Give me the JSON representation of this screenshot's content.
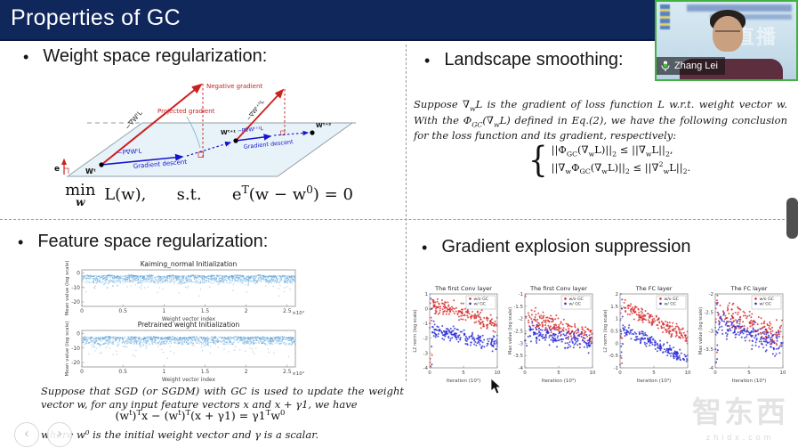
{
  "header": {
    "title": "Properties of GC"
  },
  "ui": {
    "bullet": "•",
    "prev": "‹",
    "next": "›",
    "brace": "{"
  },
  "video": {
    "participant": "Zhang Lei",
    "watermark": "直播"
  },
  "branding": {
    "cn": "智东西",
    "site": "zhidx.com"
  },
  "sections": {
    "weight": {
      "heading": "Weight space regularization:",
      "eq_min": "min",
      "eq_min_sub": "w",
      "eq_rest": [
        {
          "t": " L(w),"
        },
        {
          "t": "      s.t.      "
        },
        {
          "t": "e"
        },
        {
          "t": "T",
          "p": 1
        },
        {
          "t": "(w − w"
        },
        {
          "t": "0",
          "p": 1
        },
        {
          "t": ") = 0"
        }
      ],
      "diagram": {
        "e": "e",
        "wt": "Wᵗ",
        "wt1": "Wᵗ⁺¹",
        "wt2": "Wᵗ⁺²",
        "neg_arrow1": "−∇WᵗL",
        "neg_arrow2": "−∇Wᵗ⁺¹L",
        "proj_arrow1": "−P∇WᵗL",
        "proj_arrow2": "−P∇Wᵗ⁺¹L",
        "negative_gradient": "Negative gradient",
        "projected_gradient": "Projected gradient",
        "gradient_descent": "Gradient descent"
      }
    },
    "landscape": {
      "heading": "Landscape smoothing:",
      "paragraph": [
        {
          "t": "Suppose ∇"
        },
        {
          "t": "w",
          "s": 1
        },
        {
          "t": "L is the gradient of loss function L w.r.t. weight vector w. With the Φ"
        },
        {
          "t": "GC",
          "s": 1
        },
        {
          "t": "(∇"
        },
        {
          "t": "w",
          "s": 1
        },
        {
          "t": "L) defined in Eq.(2), we have the following conclusion for the loss function and its gradient, respectively:"
        }
      ],
      "eq1": [
        {
          "t": "||Φ"
        },
        {
          "t": "GC",
          "s": 1
        },
        {
          "t": "(∇"
        },
        {
          "t": "w",
          "s": 1
        },
        {
          "t": "L)||"
        },
        {
          "t": "2",
          "s": 1
        },
        {
          "t": " ≤ ||∇"
        },
        {
          "t": "w",
          "s": 1
        },
        {
          "t": "L||"
        },
        {
          "t": "2",
          "s": 1
        },
        {
          "t": ","
        }
      ],
      "eq2": [
        {
          "t": "||∇"
        },
        {
          "t": "w",
          "s": 1
        },
        {
          "t": "Φ"
        },
        {
          "t": "GC",
          "s": 1
        },
        {
          "t": "(∇"
        },
        {
          "t": "w",
          "s": 1
        },
        {
          "t": "L)||"
        },
        {
          "t": "2",
          "s": 1
        },
        {
          "t": " ≤ ||∇"
        },
        {
          "t": "2",
          "p": 1
        },
        {
          "t": "w",
          "s": 1
        },
        {
          "t": "L||"
        },
        {
          "t": "2",
          "s": 1
        },
        {
          "t": "."
        }
      ]
    },
    "feature": {
      "heading": "Feature space regularization:",
      "p1": "Suppose that SGD (or SGDM) with GC is used to update the weight vector w, for any input feature vectors x and x + γ1, we have",
      "equation": [
        {
          "t": "(w"
        },
        {
          "t": "t",
          "p": 1
        },
        {
          "t": ")"
        },
        {
          "t": "T",
          "p": 1
        },
        {
          "t": "x − (w"
        },
        {
          "t": "t",
          "p": 1
        },
        {
          "t": ")"
        },
        {
          "t": "T",
          "p": 1
        },
        {
          "t": "(x + γ1) = γ1"
        },
        {
          "t": "T",
          "p": 1
        },
        {
          "t": "w"
        },
        {
          "t": "0",
          "p": 1
        }
      ],
      "p2": "where w⁰ is the initial weight vector and γ is a scalar."
    },
    "gradient": {
      "heading": "Gradient explosion suppression"
    }
  },
  "chart_data": [
    {
      "type": "scatter",
      "title": "Kaiming_normal Initialization",
      "xlabel": "Weight vector index",
      "ylabel": "Mean value (log scale)",
      "x_suffix": "×10⁴",
      "xlim": [
        0,
        2.6
      ],
      "ylim": [
        -23,
        2
      ],
      "xticks": [
        [
          0,
          "0"
        ],
        [
          0.5,
          "0.5"
        ],
        [
          1,
          "1"
        ],
        [
          1.5,
          "1.5"
        ],
        [
          2,
          "2"
        ],
        [
          2.5,
          "2.5"
        ]
      ],
      "yticks": [
        [
          0,
          "0"
        ],
        [
          -10,
          "-10"
        ],
        [
          -20,
          "-20"
        ]
      ],
      "series": [
        {
          "name": "mean value",
          "color": "#4f9bd5",
          "style": "band",
          "n": 1400,
          "band_top": -2.0
        }
      ]
    },
    {
      "type": "scatter",
      "title": "Pretrained weight Initialization",
      "xlabel": "Weight vector index",
      "ylabel": "Mean value (log scale)",
      "x_suffix": "×10⁴",
      "xlim": [
        0,
        2.6
      ],
      "ylim": [
        -23,
        2
      ],
      "xticks": [
        [
          0,
          "0"
        ],
        [
          0.5,
          "0.5"
        ],
        [
          1,
          "1"
        ],
        [
          1.5,
          "1.5"
        ],
        [
          2,
          "2"
        ],
        [
          2.5,
          "2.5"
        ]
      ],
      "yticks": [
        [
          0,
          "0"
        ],
        [
          -10,
          "-10"
        ],
        [
          -20,
          "-20"
        ]
      ],
      "series": [
        {
          "name": "mean value",
          "color": "#4f9bd5",
          "style": "band",
          "n": 1400,
          "band_top": -2.6
        }
      ]
    },
    {
      "type": "scatter",
      "title": "The first Conv layer",
      "xlabel": "Iteration (10³)",
      "ylabel": "L2 norm (log scale)",
      "xlim": [
        0,
        10
      ],
      "ylim": [
        -4,
        1
      ],
      "xticks": [
        [
          0,
          "0"
        ],
        [
          5,
          "5"
        ],
        [
          10,
          "10"
        ]
      ],
      "yticks": [
        [
          1,
          "1"
        ],
        [
          0,
          "0"
        ],
        [
          -1,
          "-1"
        ],
        [
          -2,
          "-2"
        ],
        [
          -3,
          "-3"
        ],
        [
          -4,
          "-4"
        ]
      ],
      "legend_pos": "top-right",
      "series": [
        {
          "name": "w/o GC",
          "color": "#d62a2a",
          "style": "trend",
          "n": 190,
          "trend": [
            0.4,
            -1.1
          ],
          "noise": 0.55
        },
        {
          "name": "w/ GC",
          "color": "#2a2ad6",
          "style": "trend",
          "n": 190,
          "trend": [
            -1.4,
            -2.4
          ],
          "noise": 0.5
        }
      ]
    },
    {
      "type": "scatter",
      "title": "The first Conv layer",
      "xlabel": "Iteration (10³)",
      "ylabel": "Max value (log scale)",
      "xlim": [
        0,
        10
      ],
      "ylim": [
        -4,
        -1
      ],
      "xticks": [
        [
          0,
          "0"
        ],
        [
          5,
          "5"
        ],
        [
          10,
          "10"
        ]
      ],
      "yticks": [
        [
          -1,
          "-1"
        ],
        [
          -1.5,
          "-1.5"
        ],
        [
          -2,
          "-2"
        ],
        [
          -2.5,
          "-2.5"
        ],
        [
          -3,
          "-3"
        ],
        [
          -3.5,
          "-3.5"
        ],
        [
          -4,
          "-4"
        ]
      ],
      "legend_pos": "top-right",
      "series": [
        {
          "name": "w/o GC",
          "color": "#d62a2a",
          "style": "trend",
          "n": 180,
          "trend": [
            -1.9,
            -2.7
          ],
          "noise": 0.4
        },
        {
          "name": "w/ GC",
          "color": "#2a2ad6",
          "style": "trend",
          "n": 180,
          "trend": [
            -2.5,
            -3.0
          ],
          "noise": 0.35
        }
      ]
    },
    {
      "type": "scatter",
      "title": "The FC layer",
      "xlabel": "Iteration (10³)",
      "ylabel": "L2 norm (log scale)",
      "xlim": [
        0,
        10
      ],
      "ylim": [
        -1,
        2
      ],
      "xticks": [
        [
          0,
          "0"
        ],
        [
          5,
          "5"
        ],
        [
          10,
          "10"
        ]
      ],
      "yticks": [
        [
          2,
          "2"
        ],
        [
          1.5,
          "1.5"
        ],
        [
          1,
          "1"
        ],
        [
          0.5,
          "0.5"
        ],
        [
          0,
          "0"
        ],
        [
          -0.5,
          "-0.5"
        ],
        [
          -1,
          "-1"
        ]
      ],
      "legend_pos": "top-right",
      "series": [
        {
          "name": "w/o GC",
          "color": "#d62a2a",
          "style": "trend",
          "n": 190,
          "trend": [
            1.55,
            0.25
          ],
          "noise": 0.3
        },
        {
          "name": "w/ GC",
          "color": "#2a2ad6",
          "style": "trend",
          "n": 190,
          "trend": [
            0.65,
            -0.7
          ],
          "noise": 0.28
        }
      ]
    },
    {
      "type": "scatter",
      "title": "The FC layer",
      "xlabel": "Iteration (10³)",
      "ylabel": "Max value (log scale)",
      "xlim": [
        0,
        10
      ],
      "ylim": [
        -4,
        -2
      ],
      "xticks": [
        [
          0,
          "0"
        ],
        [
          5,
          "5"
        ],
        [
          10,
          "10"
        ]
      ],
      "yticks": [
        [
          -2,
          "-2"
        ],
        [
          -2.5,
          "-2.5"
        ],
        [
          -3,
          "-3"
        ],
        [
          -3.5,
          "-3.5"
        ],
        [
          -4,
          "-4"
        ]
      ],
      "legend_pos": "top-right",
      "series": [
        {
          "name": "w/o GC",
          "color": "#d62a2a",
          "style": "trend",
          "n": 180,
          "trend": [
            -2.45,
            -3.15
          ],
          "noise": 0.35
        },
        {
          "name": "w/ GC",
          "color": "#2a2ad6",
          "style": "trend",
          "n": 180,
          "trend": [
            -2.75,
            -3.45
          ],
          "noise": 0.3
        }
      ]
    }
  ],
  "colors": {
    "header_bg": "#10275c",
    "accent_red": "#cc2020",
    "accent_blue": "#1515cc",
    "video_border": "#43b043",
    "scatter_blue": "#4f9bd5",
    "series_red": "#d62a2a",
    "series_blue": "#2a2ad6"
  }
}
